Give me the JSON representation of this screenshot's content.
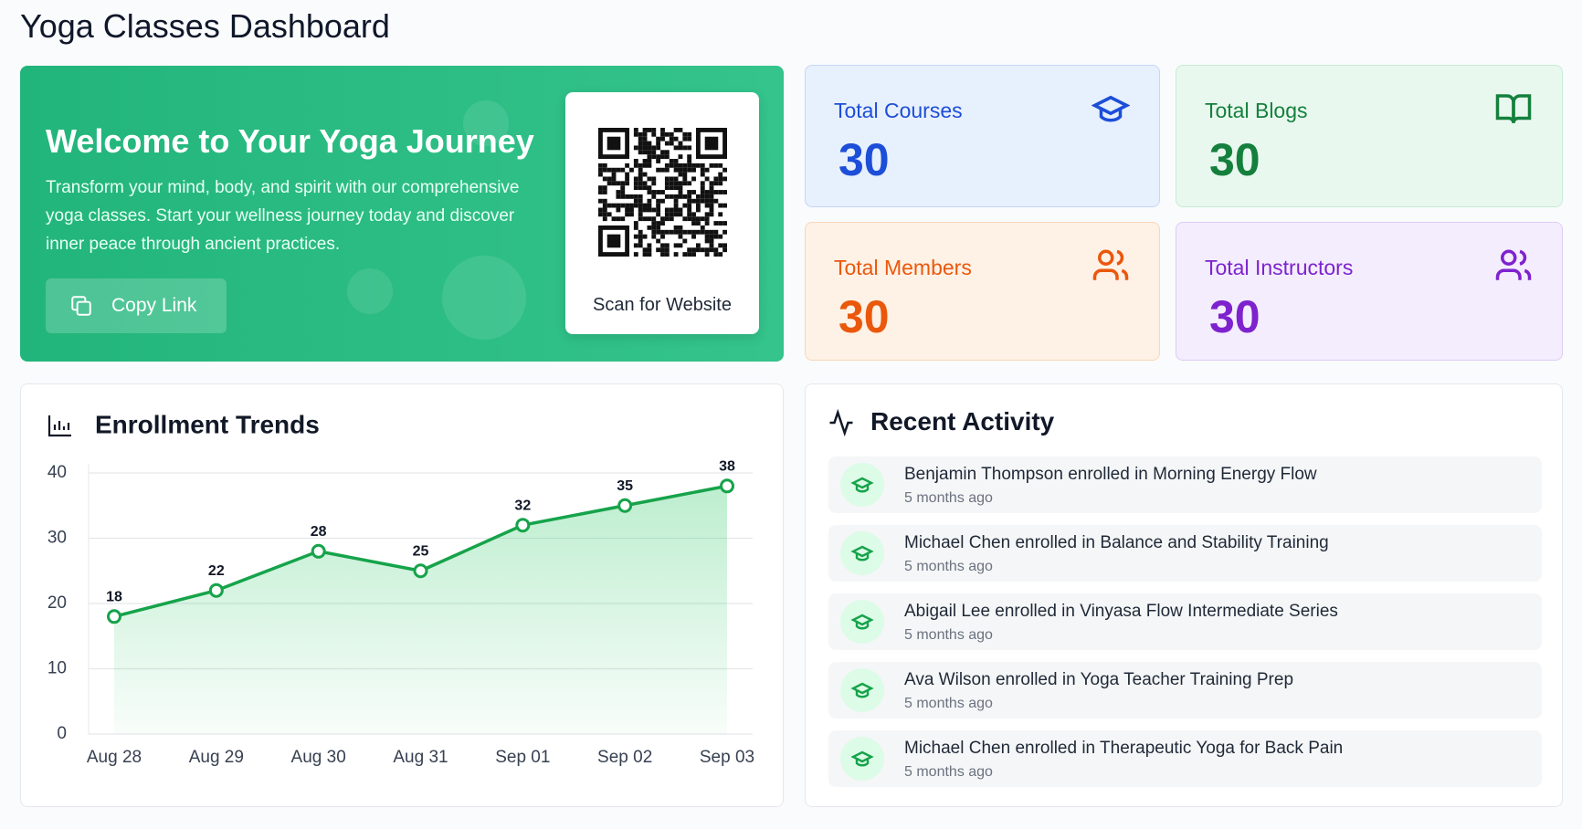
{
  "header": {
    "title": "Yoga Classes Dashboard"
  },
  "hero": {
    "title": "Welcome to Your Yoga Journey",
    "text": "Transform your mind, body, and spirit with our comprehensive yoga classes. Start your wellness journey today and discover inner peace through ancient practices.",
    "button": "Copy Link",
    "qr_caption": "Scan for Website"
  },
  "stats": [
    {
      "label": "Total Courses",
      "value": 30
    },
    {
      "label": "Total Blogs",
      "value": 30
    },
    {
      "label": "Total Members",
      "value": 30
    },
    {
      "label": "Total Instructors",
      "value": 30
    }
  ],
  "chart_data": {
    "type": "line",
    "title": "Enrollment Trends",
    "categories": [
      "Aug 28",
      "Aug 29",
      "Aug 30",
      "Aug 31",
      "Sep 01",
      "Sep 02",
      "Sep 03"
    ],
    "values": [
      18,
      22,
      28,
      25,
      32,
      35,
      38
    ],
    "color": "#16a34a",
    "ylim": [
      0,
      40
    ],
    "yticks": [
      0,
      10,
      20,
      30,
      40
    ],
    "grid": true
  },
  "activity": {
    "title": "Recent Activity",
    "items": [
      {
        "text": "Benjamin Thompson enrolled in Morning Energy Flow",
        "time": "5 months ago"
      },
      {
        "text": "Michael Chen enrolled in Balance and Stability Training",
        "time": "5 months ago"
      },
      {
        "text": "Abigail Lee enrolled in Vinyasa Flow Intermediate Series",
        "time": "5 months ago"
      },
      {
        "text": "Ava Wilson enrolled in Yoga Teacher Training Prep",
        "time": "5 months ago"
      },
      {
        "text": "Michael Chen enrolled in Therapeutic Yoga for Back Pain",
        "time": "5 months ago"
      }
    ]
  }
}
